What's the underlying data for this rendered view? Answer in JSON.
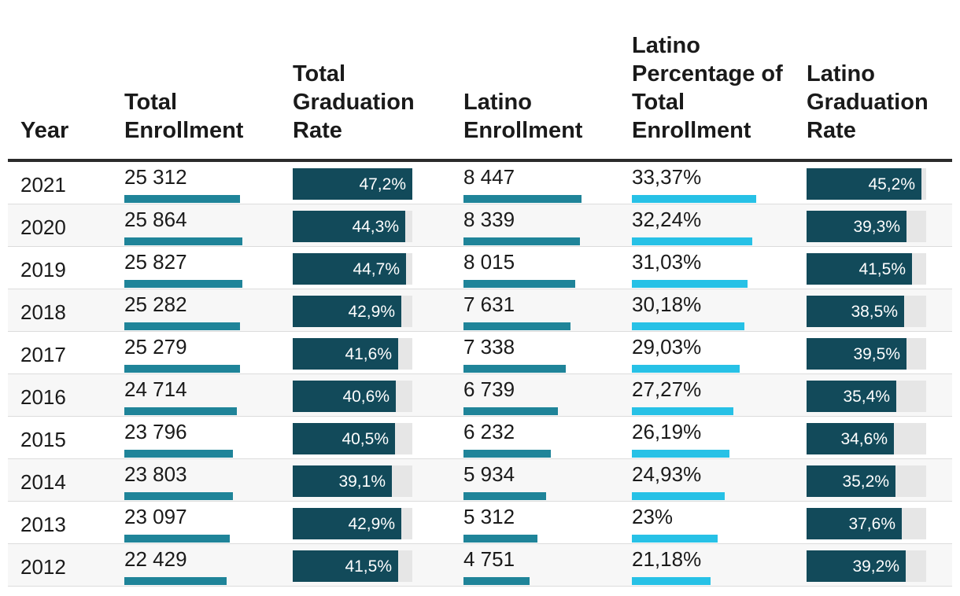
{
  "chart_data": {
    "type": "table",
    "columns": {
      "year": "Year",
      "total_enrollment": "Total Enrollment",
      "total_grad_rate": "Total Graduation Rate",
      "latino_enrollment": "Latino Enrollment",
      "latino_pct": "Latino Percentage of Total Enrollment",
      "latino_grad_rate": "Latino Graduation Rate"
    },
    "scales": {
      "total_enrollment_max": 25864,
      "latino_enrollment_max": 8447,
      "latino_pct_max": 33.37,
      "rate_max": 47.2
    },
    "colors": {
      "enrollment_bar": "#1f8499",
      "latino_pct_bar": "#27c1e6",
      "rate_fill": "#124a5a",
      "rate_track": "#e6e6e6"
    },
    "rows": [
      {
        "year": "2021",
        "total_enrollment": 25312,
        "total_enrollment_label": "25 312",
        "total_grad_rate": 47.2,
        "total_grad_rate_label": "47,2%",
        "latino_enrollment": 8447,
        "latino_enrollment_label": "8 447",
        "latino_pct": 33.37,
        "latino_pct_label": "33,37%",
        "latino_grad_rate": 45.2,
        "latino_grad_rate_label": "45,2%"
      },
      {
        "year": "2020",
        "total_enrollment": 25864,
        "total_enrollment_label": "25 864",
        "total_grad_rate": 44.3,
        "total_grad_rate_label": "44,3%",
        "latino_enrollment": 8339,
        "latino_enrollment_label": "8 339",
        "latino_pct": 32.24,
        "latino_pct_label": "32,24%",
        "latino_grad_rate": 39.3,
        "latino_grad_rate_label": "39,3%"
      },
      {
        "year": "2019",
        "total_enrollment": 25827,
        "total_enrollment_label": "25 827",
        "total_grad_rate": 44.7,
        "total_grad_rate_label": "44,7%",
        "latino_enrollment": 8015,
        "latino_enrollment_label": "8 015",
        "latino_pct": 31.03,
        "latino_pct_label": "31,03%",
        "latino_grad_rate": 41.5,
        "latino_grad_rate_label": "41,5%"
      },
      {
        "year": "2018",
        "total_enrollment": 25282,
        "total_enrollment_label": "25 282",
        "total_grad_rate": 42.9,
        "total_grad_rate_label": "42,9%",
        "latino_enrollment": 7631,
        "latino_enrollment_label": "7 631",
        "latino_pct": 30.18,
        "latino_pct_label": "30,18%",
        "latino_grad_rate": 38.5,
        "latino_grad_rate_label": "38,5%"
      },
      {
        "year": "2017",
        "total_enrollment": 25279,
        "total_enrollment_label": "25 279",
        "total_grad_rate": 41.6,
        "total_grad_rate_label": "41,6%",
        "latino_enrollment": 7338,
        "latino_enrollment_label": "7 338",
        "latino_pct": 29.03,
        "latino_pct_label": "29,03%",
        "latino_grad_rate": 39.5,
        "latino_grad_rate_label": "39,5%"
      },
      {
        "year": "2016",
        "total_enrollment": 24714,
        "total_enrollment_label": "24 714",
        "total_grad_rate": 40.6,
        "total_grad_rate_label": "40,6%",
        "latino_enrollment": 6739,
        "latino_enrollment_label": "6 739",
        "latino_pct": 27.27,
        "latino_pct_label": "27,27%",
        "latino_grad_rate": 35.4,
        "latino_grad_rate_label": "35,4%"
      },
      {
        "year": "2015",
        "total_enrollment": 23796,
        "total_enrollment_label": "23 796",
        "total_grad_rate": 40.5,
        "total_grad_rate_label": "40,5%",
        "latino_enrollment": 6232,
        "latino_enrollment_label": "6 232",
        "latino_pct": 26.19,
        "latino_pct_label": "26,19%",
        "latino_grad_rate": 34.6,
        "latino_grad_rate_label": "34,6%"
      },
      {
        "year": "2014",
        "total_enrollment": 23803,
        "total_enrollment_label": "23 803",
        "total_grad_rate": 39.1,
        "total_grad_rate_label": "39,1%",
        "latino_enrollment": 5934,
        "latino_enrollment_label": "5 934",
        "latino_pct": 24.93,
        "latino_pct_label": "24,93%",
        "latino_grad_rate": 35.2,
        "latino_grad_rate_label": "35,2%"
      },
      {
        "year": "2013",
        "total_enrollment": 23097,
        "total_enrollment_label": "23 097",
        "total_grad_rate": 42.9,
        "total_grad_rate_label": "42,9%",
        "latino_enrollment": 5312,
        "latino_enrollment_label": "5 312",
        "latino_pct": 23,
        "latino_pct_label": "23%",
        "latino_grad_rate": 37.6,
        "latino_grad_rate_label": "37,6%"
      },
      {
        "year": "2012",
        "total_enrollment": 22429,
        "total_enrollment_label": "22 429",
        "total_grad_rate": 41.5,
        "total_grad_rate_label": "41,5%",
        "latino_enrollment": 4751,
        "latino_enrollment_label": "4 751",
        "latino_pct": 21.18,
        "latino_pct_label": "21,18%",
        "latino_grad_rate": 39.2,
        "latino_grad_rate_label": "39,2%"
      }
    ]
  }
}
